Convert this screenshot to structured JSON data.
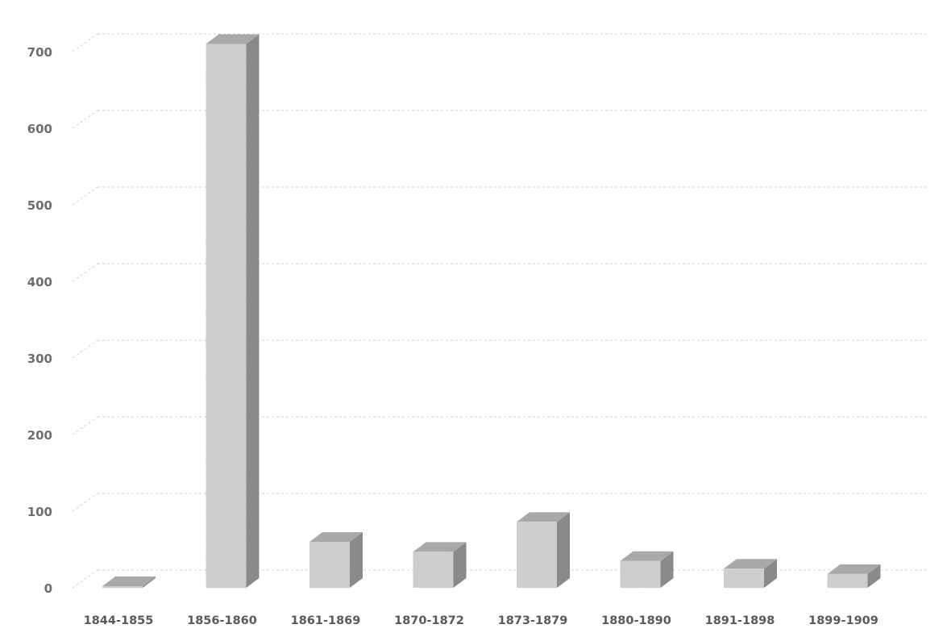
{
  "chart_data": {
    "type": "bar",
    "title": "",
    "xlabel": "",
    "ylabel": "",
    "categories": [
      "1844-1855",
      "1856-1860",
      "1861-1869",
      "1870-1872",
      "1873-1879",
      "1880-1890",
      "1891-1898",
      "1899-1909"
    ],
    "values": [
      2,
      710,
      60,
      47,
      86,
      35,
      25,
      18
    ],
    "ylim": [
      0,
      700
    ],
    "yticks": [
      0,
      100,
      200,
      300,
      400,
      500,
      600,
      700
    ],
    "grid": true,
    "legend": "none",
    "style": "3d-column",
    "colors": {
      "bar_front": "#d6d6d6",
      "bar_side": "#8a8a8a",
      "bar_top": "#a9a9a9",
      "grid": "#cfcfcf",
      "axis_text": "#6e6e6e",
      "category_text": "#5a5a5a"
    }
  }
}
